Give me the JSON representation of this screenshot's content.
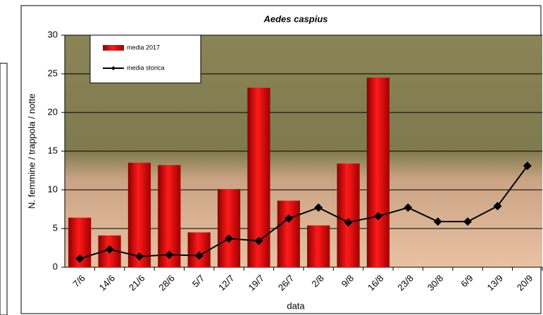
{
  "chart_data": {
    "type": "bar_line",
    "title": "Aedes caspius",
    "y_label": "N. femmine / trappola / notte",
    "x_label": "data",
    "categories": [
      "7/6",
      "14/6",
      "21/6",
      "28/6",
      "5/7",
      "12/7",
      "19/7",
      "26/7",
      "2/8",
      "9/8",
      "16/8",
      "23/8",
      "30/8",
      "6/9",
      "13/9",
      "20/9"
    ],
    "series": [
      {
        "name": "media 2017",
        "type": "bar",
        "color": "#d40000",
        "values": [
          6.4,
          4.1,
          13.5,
          13.2,
          4.5,
          10.1,
          23.2,
          8.6,
          5.4,
          13.4,
          24.5,
          null,
          null,
          null,
          null,
          null
        ]
      },
      {
        "name": "media storica",
        "type": "line",
        "color": "#000000",
        "values": [
          1.1,
          2.3,
          1.4,
          1.6,
          1.5,
          3.7,
          3.4,
          6.3,
          7.7,
          5.8,
          6.6,
          7.7,
          5.9,
          5.9,
          7.9,
          13.1
        ]
      }
    ],
    "ylim": [
      0,
      30
    ],
    "yticks": [
      0,
      5,
      10,
      15,
      20,
      25,
      30
    ],
    "grid": true
  }
}
